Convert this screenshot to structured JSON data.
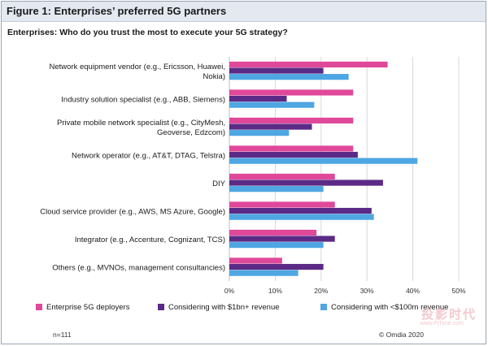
{
  "figure": {
    "title": "Figure 1: Enterprises’ preferred 5G partners",
    "question": "Enterprises: Who do you trust the most to execute your 5G strategy?",
    "sample_size": "n=111",
    "copyright": "© Omdia 2020",
    "watermark": "投影时代",
    "watermark_url": "www.PjTime.com"
  },
  "chart_data": {
    "type": "bar",
    "orientation": "horizontal",
    "categories": [
      [
        "Network equipment vendor (e.g., Ericsson, Huawei,",
        "Nokia)"
      ],
      [
        "Industry solution specialist (e.g., ABB, Siemens)"
      ],
      [
        "Private mobile network specialist (e.g., CityMesh,",
        "Geoverse, Edzcom)"
      ],
      [
        "Network operator (e.g., AT&T, DTAG, Telstra)"
      ],
      [
        "DIY"
      ],
      [
        "Cloud service provider (e.g., AWS, MS Azure, Google)"
      ],
      [
        "Integrator (e.g., Accenture, Cognizant, TCS)"
      ],
      [
        "Others (e.g., MVNOs, management consultancies)"
      ]
    ],
    "series": [
      {
        "name": "Enterprise 5G deployers",
        "color": "#e0489a",
        "values": [
          34.5,
          27,
          27,
          27,
          23,
          23,
          19,
          11.5
        ]
      },
      {
        "name": "Considering with $1bn+ revenue",
        "color": "#5b2a86",
        "values": [
          20.5,
          12.5,
          18,
          28,
          33.5,
          31,
          23,
          20.5
        ]
      },
      {
        "name": "Considering with <$100m revenue",
        "color": "#4ea6e3",
        "values": [
          26,
          18.5,
          13,
          41,
          20.5,
          31.5,
          20.5,
          15
        ]
      }
    ],
    "xlim": [
      0,
      50
    ],
    "xticks": [
      "0%",
      "10%",
      "20%",
      "30%",
      "40%",
      "50%"
    ],
    "grid": true,
    "legend_position": "bottom"
  }
}
